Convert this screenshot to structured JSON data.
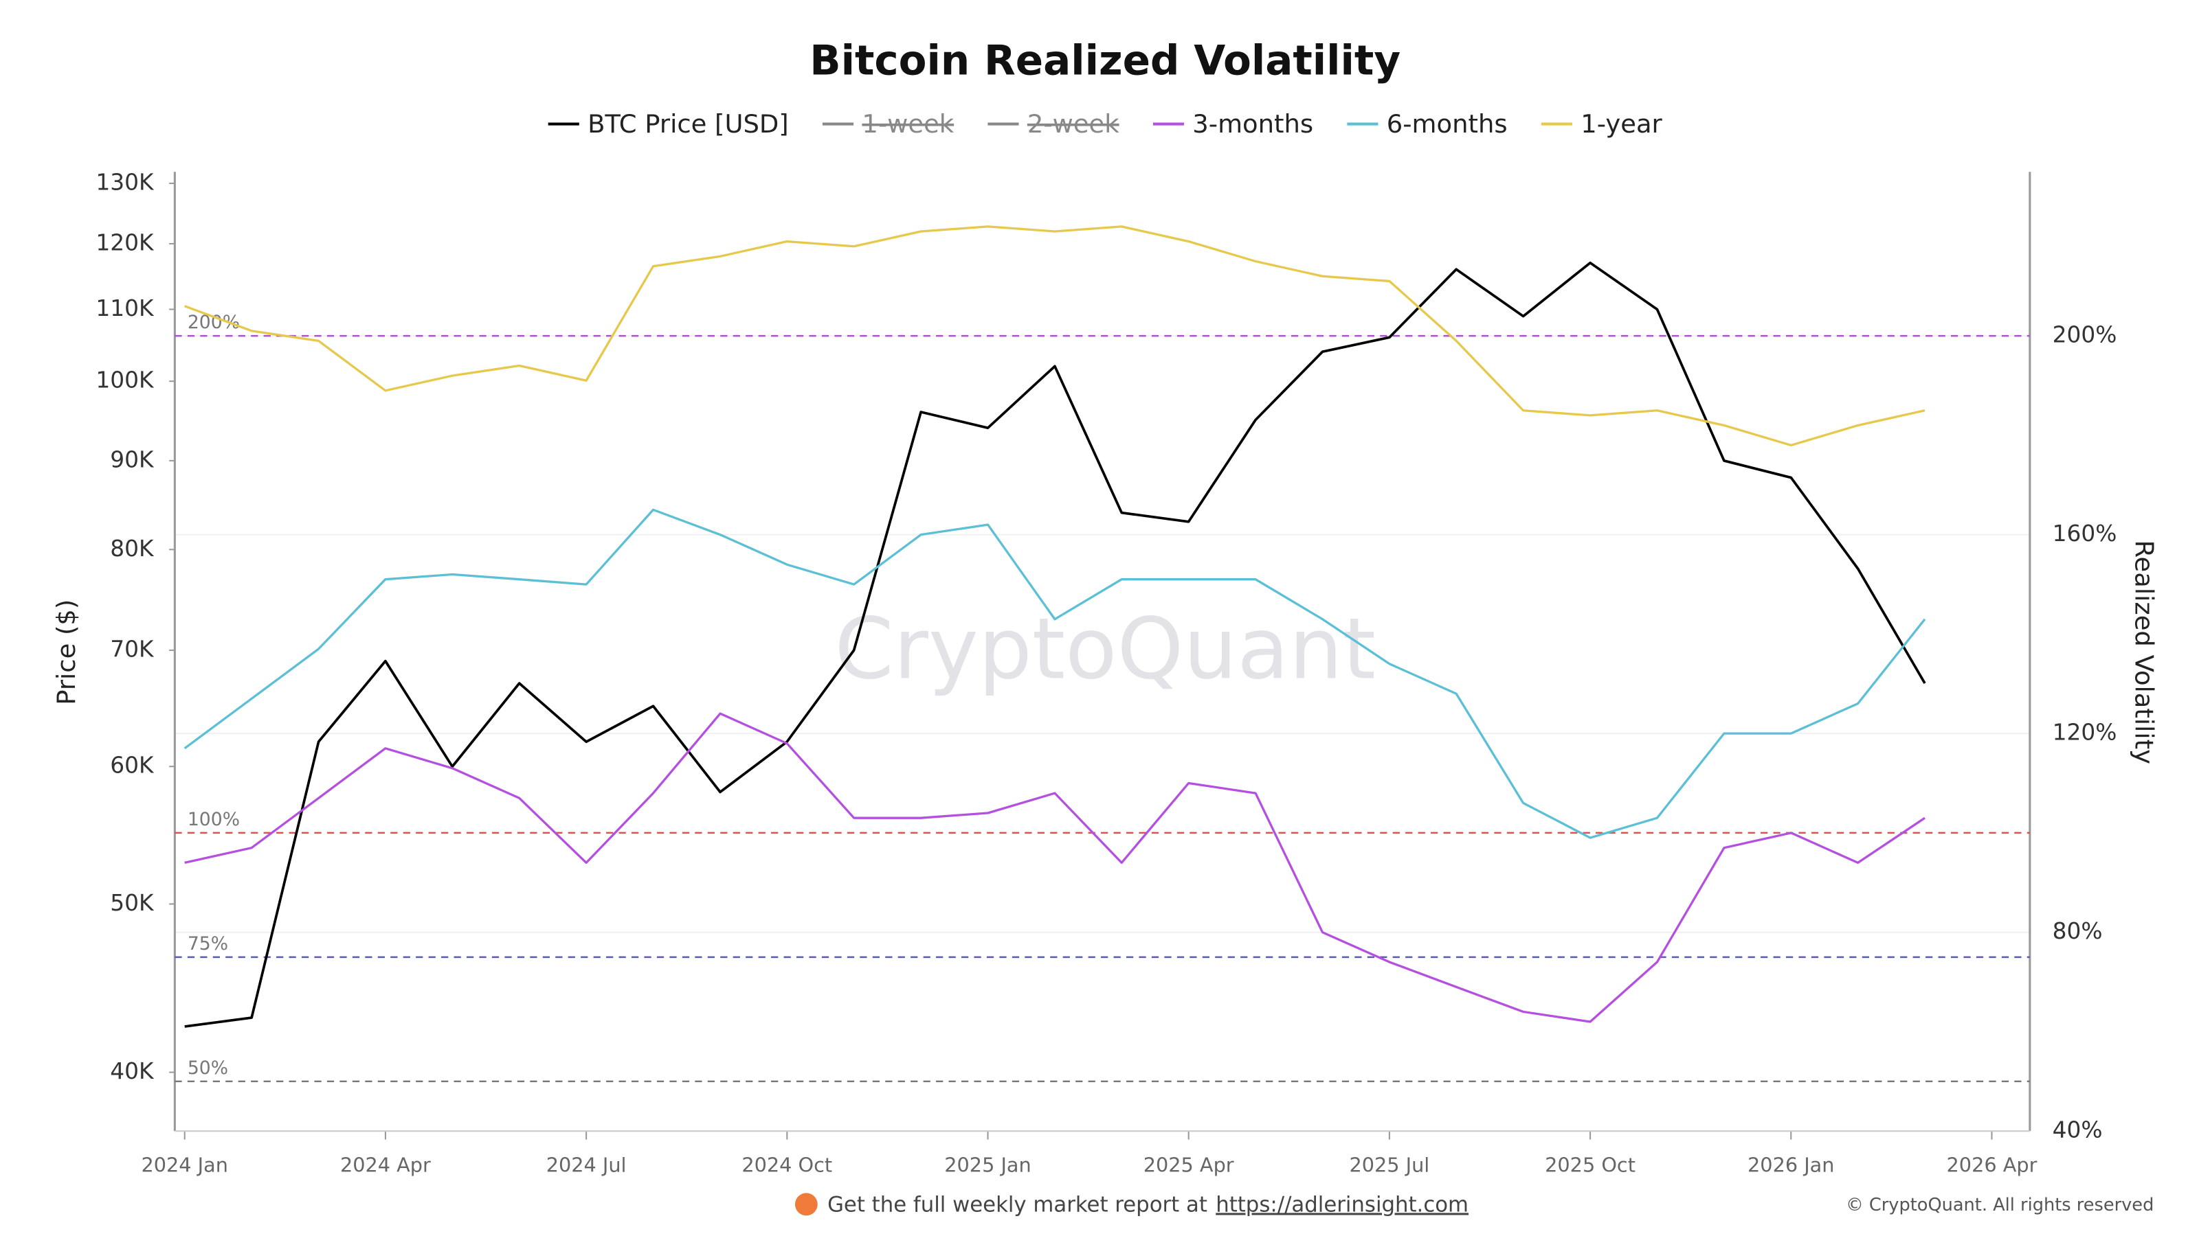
{
  "chart_data": {
    "type": "line",
    "title": "Bitcoin Realized Volatility",
    "ylabel": "Price ($)",
    "y2label": "Realized Volatility",
    "watermark": "CryptoQuant",
    "footer": {
      "text": "Get the full weekly market report at",
      "link": "https://adlerinsight.com",
      "copyright": "© CryptoQuant. All rights reserved"
    },
    "x": [
      "2024-01",
      "2024-02",
      "2024-03",
      "2024-04",
      "2024-05",
      "2024-06",
      "2024-07",
      "2024-08",
      "2024-09",
      "2024-10",
      "2024-11",
      "2024-12",
      "2025-01",
      "2025-02",
      "2025-03",
      "2025-04",
      "2025-05",
      "2025-06",
      "2025-07",
      "2025-08",
      "2025-09",
      "2025-10",
      "2025-11",
      "2025-12",
      "2026-01",
      "2026-02",
      "2026-03"
    ],
    "xlim": [
      "2024-01",
      "2026-04"
    ],
    "xticks": [
      {
        "value": "2024-01",
        "label": "2024 Jan"
      },
      {
        "value": "2024-04",
        "label": "2024 Apr"
      },
      {
        "value": "2024-07",
        "label": "2024 Jul"
      },
      {
        "value": "2024-10",
        "label": "2024 Oct"
      },
      {
        "value": "2025-01",
        "label": "2025 Jan"
      },
      {
        "value": "2025-04",
        "label": "2025 Apr"
      },
      {
        "value": "2025-07",
        "label": "2025 Jul"
      },
      {
        "value": "2025-10",
        "label": "2025 Oct"
      },
      {
        "value": "2026-01",
        "label": "2026 Jan"
      },
      {
        "value": "2026-04",
        "label": "2026 Apr"
      }
    ],
    "ylog": true,
    "ylim": [
      37000,
      132000
    ],
    "yticks": [
      {
        "value": 40000,
        "label": "40K"
      },
      {
        "value": 50000,
        "label": "50K"
      },
      {
        "value": 60000,
        "label": "60K"
      },
      {
        "value": 70000,
        "label": "70K"
      },
      {
        "value": 80000,
        "label": "80K"
      },
      {
        "value": 90000,
        "label": "90K"
      },
      {
        "value": 100000,
        "label": "100K"
      },
      {
        "value": 110000,
        "label": "110K"
      },
      {
        "value": 120000,
        "label": "120K"
      },
      {
        "value": 130000,
        "label": "130K"
      }
    ],
    "y2lim": [
      40,
      233
    ],
    "y2ticks": [
      {
        "value": 40,
        "label": "40%"
      },
      {
        "value": 80,
        "label": "80%"
      },
      {
        "value": 120,
        "label": "120%"
      },
      {
        "value": 160,
        "label": "160%"
      },
      {
        "value": 200,
        "label": "200%"
      }
    ],
    "grid": true,
    "reference_lines": [
      {
        "value": 200,
        "label": "200%",
        "color": "#a855c8"
      },
      {
        "value": 100,
        "label": "100%",
        "color": "#d9534f"
      },
      {
        "value": 75,
        "label": "75%",
        "color": "#5b5bb8"
      },
      {
        "value": 50,
        "label": "50%",
        "color": "#777777"
      }
    ],
    "series": [
      {
        "name": "BTC Price [USD]",
        "color": "#000000",
        "axis": "y",
        "values": [
          42500,
          43000,
          62000,
          69000,
          60000,
          67000,
          62000,
          65000,
          58000,
          62000,
          70000,
          96000,
          94000,
          102000,
          84000,
          83000,
          95000,
          104000,
          106000,
          116000,
          109000,
          117000,
          110000,
          90000,
          88000,
          78000,
          67000
        ]
      },
      {
        "name": "1-week",
        "color": "#888888",
        "axis": "y2",
        "hidden": true,
        "values": [
          null,
          null,
          null,
          null,
          null,
          null,
          null,
          null,
          null,
          null,
          null,
          null,
          null,
          null,
          null,
          null,
          null,
          null,
          null,
          null,
          null,
          null,
          null,
          null,
          null,
          null,
          null
        ]
      },
      {
        "name": "2-week",
        "color": "#888888",
        "axis": "y2",
        "hidden": true,
        "values": [
          null,
          null,
          null,
          null,
          null,
          null,
          null,
          null,
          null,
          null,
          null,
          null,
          null,
          null,
          null,
          null,
          null,
          null,
          null,
          null,
          null,
          null,
          null,
          null,
          null,
          null,
          null
        ]
      },
      {
        "name": "3-months",
        "color": "#b44fe0",
        "axis": "y2",
        "values": [
          94,
          97,
          107,
          117,
          113,
          107,
          94,
          108,
          124,
          118,
          103,
          103,
          104,
          108,
          94,
          110,
          108,
          80,
          74,
          69,
          64,
          62,
          74,
          97,
          100,
          94,
          103
        ]
      },
      {
        "name": "6-months",
        "color": "#5bbfd6",
        "axis": "y2",
        "values": [
          117,
          127,
          137,
          151,
          152,
          151,
          150,
          165,
          160,
          154,
          150,
          160,
          162,
          143,
          151,
          151,
          151,
          143,
          134,
          128,
          106,
          99,
          103,
          120,
          120,
          126,
          143
        ]
      },
      {
        "name": "1-year",
        "color": "#e6c84a",
        "axis": "y2",
        "values": [
          206,
          201,
          199,
          189,
          192,
          194,
          191,
          214,
          216,
          219,
          218,
          221,
          222,
          221,
          222,
          219,
          215,
          212,
          211,
          199,
          185,
          184,
          185,
          182,
          178,
          182,
          185
        ]
      }
    ]
  }
}
